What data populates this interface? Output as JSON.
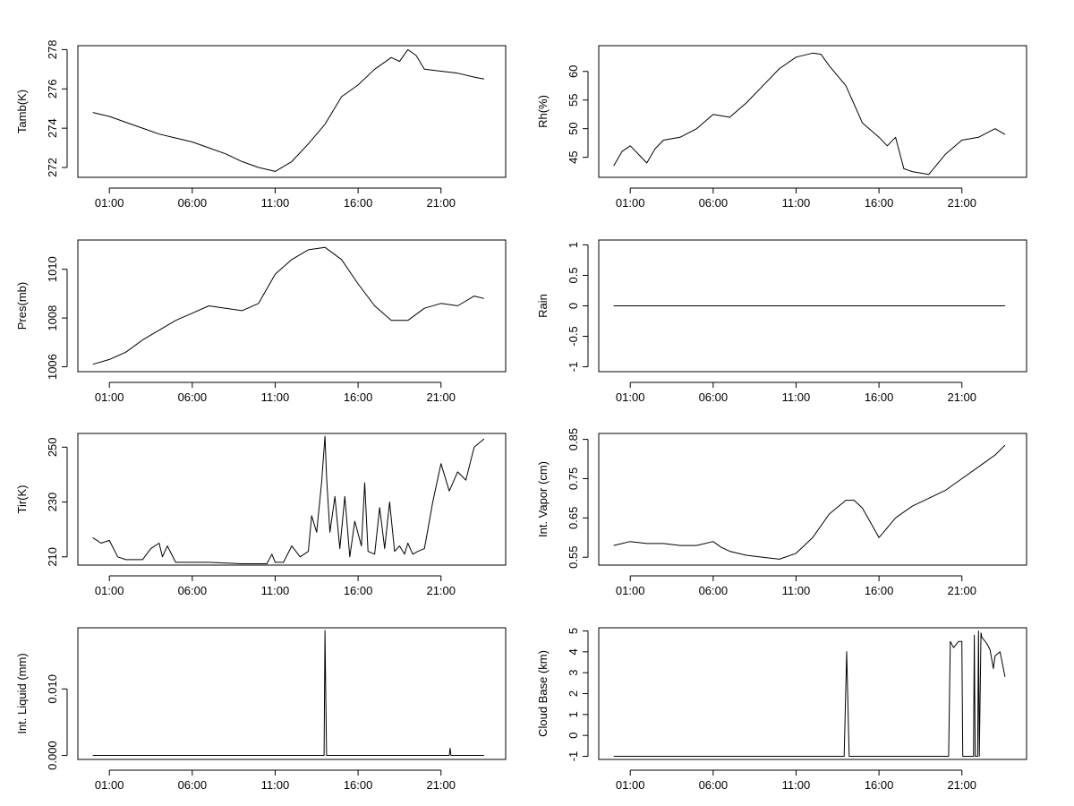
{
  "figure": {
    "x_tick_labels": [
      "01:00",
      "06:00",
      "11:00",
      "16:00",
      "21:00"
    ],
    "x_tick_hours": [
      1,
      6,
      11,
      16,
      21
    ],
    "x_range_hours": [
      -0.9,
      24.9
    ]
  },
  "chart_data": [
    {
      "type": "line",
      "ylabel": "Tamb(K)",
      "yticks": [
        272,
        274,
        276,
        278
      ],
      "ylim": [
        271.5,
        278.2
      ],
      "x_hours": [
        0,
        1,
        2,
        3,
        4,
        5,
        6,
        7,
        8,
        9,
        10,
        11,
        12,
        13,
        14,
        15,
        16,
        17,
        18,
        18.5,
        19,
        19.5,
        20,
        21,
        22,
        23,
        23.6
      ],
      "series": [
        {
          "values": [
            274.8,
            274.6,
            274.3,
            274.0,
            273.7,
            273.5,
            273.3,
            273.0,
            272.7,
            272.3,
            272.0,
            271.8,
            272.3,
            273.2,
            274.2,
            275.6,
            276.2,
            277.0,
            277.6,
            277.4,
            278.0,
            277.7,
            277.0,
            276.9,
            276.8,
            276.6,
            276.5
          ]
        }
      ]
    },
    {
      "type": "line",
      "ylabel": "Rh(%)",
      "yticks": [
        45,
        50,
        55,
        60
      ],
      "ylim": [
        41.5,
        64.5
      ],
      "x_hours": [
        0,
        0.5,
        1,
        1.5,
        2,
        2.5,
        3,
        4,
        5,
        6,
        7,
        8,
        9,
        10,
        11,
        12,
        12.5,
        13,
        14,
        15,
        16,
        16.5,
        17,
        17.5,
        18,
        19,
        20,
        21,
        22,
        23,
        23.6
      ],
      "series": [
        {
          "values": [
            43.5,
            46,
            47,
            45.5,
            44,
            46.5,
            48,
            48.5,
            50,
            52.5,
            52,
            54.5,
            57.5,
            60.5,
            62.5,
            63.2,
            63,
            61,
            57.5,
            51,
            48.5,
            47,
            48.5,
            43,
            42.5,
            42,
            45.5,
            48,
            48.5,
            50,
            49
          ]
        }
      ]
    },
    {
      "type": "line",
      "ylabel": "Pres(mb)",
      "yticks": [
        1006,
        1008,
        1010
      ],
      "ylim": [
        1005.8,
        1011.2
      ],
      "x_hours": [
        0,
        1,
        2,
        3,
        4,
        5,
        6,
        7,
        8,
        9,
        10,
        11,
        12,
        13,
        14,
        15,
        16,
        17,
        18,
        19,
        20,
        21,
        22,
        23,
        23.6
      ],
      "series": [
        {
          "values": [
            1006.1,
            1006.3,
            1006.6,
            1007.1,
            1007.5,
            1007.9,
            1008.2,
            1008.5,
            1008.4,
            1008.3,
            1008.6,
            1009.8,
            1010.4,
            1010.8,
            1010.9,
            1010.4,
            1009.4,
            1008.5,
            1007.9,
            1007.9,
            1008.4,
            1008.6,
            1008.5,
            1008.9,
            1008.8
          ]
        }
      ]
    },
    {
      "type": "line",
      "ylabel": "Rain",
      "yticks": [
        -1.0,
        -0.5,
        0.0,
        0.5,
        1.0
      ],
      "ylim": [
        -1.08,
        1.08
      ],
      "x_hours": [
        0,
        23.6
      ],
      "series": [
        {
          "values": [
            0,
            0
          ]
        }
      ]
    },
    {
      "type": "line",
      "ylabel": "Tir(K)",
      "yticks": [
        210,
        230,
        250
      ],
      "ylim": [
        207,
        255
      ],
      "x_hours": [
        0,
        0.5,
        1,
        1.5,
        2,
        3,
        3.5,
        4,
        4.2,
        4.5,
        5,
        7,
        9,
        10.5,
        10.8,
        11,
        11.5,
        12,
        12.5,
        13,
        13.2,
        13.5,
        13.8,
        14,
        14.1,
        14.3,
        14.6,
        14.9,
        15.2,
        15.5,
        15.8,
        16.2,
        16.4,
        16.6,
        17,
        17.3,
        17.6,
        17.9,
        18.2,
        18.5,
        18.8,
        19,
        19.3,
        19.6,
        20,
        20.5,
        21,
        21.5,
        22,
        22.5,
        23,
        23.6
      ],
      "series": [
        {
          "values": [
            217,
            215,
            216,
            210,
            209,
            209,
            213,
            215,
            210,
            214,
            208,
            208,
            207.5,
            207.5,
            211,
            208,
            208,
            214,
            210,
            212,
            225,
            219,
            237,
            254,
            239,
            219,
            232,
            213,
            232,
            210,
            223,
            214,
            237,
            212,
            211,
            228,
            213,
            230,
            212,
            214,
            211,
            215,
            211,
            212,
            213,
            230,
            244,
            234,
            241,
            238,
            250,
            253
          ]
        }
      ]
    },
    {
      "type": "line",
      "ylabel": "Int. Vapor (cm)",
      "yticks": [
        0.55,
        0.65,
        0.75,
        0.85
      ],
      "ylim": [
        0.53,
        0.865
      ],
      "x_hours": [
        0,
        1,
        2,
        3,
        4,
        5,
        6,
        6.5,
        7,
        8,
        9,
        10,
        11,
        11.5,
        12,
        13,
        14,
        14.5,
        15,
        16,
        16.5,
        17,
        18,
        19,
        20,
        21,
        22,
        23,
        23.6
      ],
      "series": [
        {
          "values": [
            0.58,
            0.59,
            0.585,
            0.585,
            0.58,
            0.58,
            0.59,
            0.575,
            0.565,
            0.555,
            0.55,
            0.545,
            0.56,
            0.58,
            0.6,
            0.66,
            0.695,
            0.695,
            0.675,
            0.6,
            0.625,
            0.65,
            0.68,
            0.7,
            0.72,
            0.75,
            0.78,
            0.81,
            0.835
          ]
        }
      ]
    },
    {
      "type": "line",
      "ylabel": "Int. Liquid (mm)",
      "yticks": [
        0.0,
        0.01
      ],
      "ytick_labels": [
        "0.000",
        "0.010"
      ],
      "ylim": [
        -0.0006,
        0.0192
      ],
      "x_hours": [
        0,
        13.95,
        14.0,
        14.05,
        14.1,
        14.15,
        21.5,
        21.55,
        21.6,
        23.6
      ],
      "series": [
        {
          "values": [
            0,
            0,
            0.0188,
            0.009,
            0,
            0,
            0,
            0.0011,
            0,
            0
          ]
        }
      ]
    },
    {
      "type": "line",
      "ylabel": "Cloud Base (km)",
      "yticks": [
        -1,
        0,
        1,
        2,
        3,
        4,
        5
      ],
      "ylim": [
        -1.15,
        5.15
      ],
      "x_hours": [
        0,
        13.9,
        14.05,
        14.2,
        14.3,
        20.2,
        20.3,
        20.5,
        20.8,
        21.0,
        21.05,
        21.1,
        21.7,
        21.75,
        21.8,
        21.95,
        22.0,
        22.05,
        22.15,
        22.2,
        22.3,
        22.5,
        22.7,
        22.9,
        23.0,
        23.3,
        23.6
      ],
      "series": [
        {
          "values": [
            -1,
            -1,
            4.0,
            -1,
            -1,
            -1,
            4.5,
            4.2,
            4.5,
            4.5,
            -1,
            -1,
            -1,
            4.8,
            -1,
            -1,
            5.0,
            -1,
            4.9,
            4.7,
            4.6,
            4.4,
            4.1,
            3.2,
            3.8,
            4.0,
            2.8
          ]
        }
      ]
    }
  ]
}
